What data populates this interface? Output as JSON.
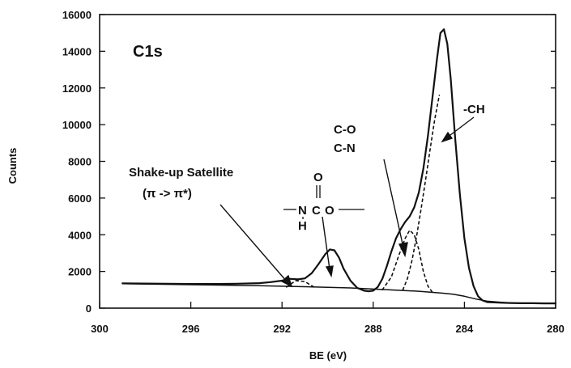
{
  "chart_data": {
    "type": "line",
    "xlabel": "BE (eV)",
    "ylabel": "Counts",
    "xlim": [
      300,
      280
    ],
    "ylim": [
      0,
      16000
    ],
    "x_ticks": [
      "300",
      "296",
      "292",
      "288",
      "284",
      "280"
    ],
    "x_tick_values": [
      300,
      296,
      292,
      288,
      284,
      280
    ],
    "y_ticks": [
      "0",
      "2000",
      "4000",
      "6000",
      "8000",
      "10000",
      "12000",
      "14000",
      "16000"
    ],
    "y_tick_values": [
      0,
      2000,
      4000,
      6000,
      8000,
      10000,
      12000,
      14000,
      16000
    ],
    "panel_label": "C1s",
    "series": [
      {
        "style": "solid",
        "x": [
          299.0,
          298.0,
          297.0,
          296.0,
          295.0,
          294.0,
          293.0,
          292.5,
          292.0,
          291.7,
          291.3,
          291.0,
          290.7,
          290.4,
          290.1,
          289.9,
          289.7,
          289.5,
          289.3,
          289.0,
          288.7,
          288.4,
          288.2,
          288.0,
          287.8,
          287.6,
          287.4,
          287.2,
          287.0,
          286.8,
          286.6,
          286.4,
          286.2,
          286.0,
          285.8,
          285.6,
          285.4,
          285.2,
          285.05,
          284.9,
          284.75,
          284.6,
          284.4,
          284.2,
          284.0,
          283.8,
          283.6,
          283.4,
          283.2,
          283.0,
          282.5,
          282.0,
          281.5,
          281.0,
          280.5,
          280.0
        ],
        "y": [
          1350,
          1340,
          1330,
          1320,
          1320,
          1330,
          1360,
          1420,
          1500,
          1600,
          1570,
          1620,
          1900,
          2400,
          2950,
          3200,
          3150,
          2750,
          2150,
          1500,
          1100,
          950,
          920,
          950,
          1150,
          1600,
          2300,
          3100,
          3800,
          4300,
          4700,
          5000,
          5500,
          6300,
          7600,
          9400,
          11500,
          13600,
          15000,
          15200,
          14400,
          12500,
          9200,
          6200,
          3800,
          2200,
          1200,
          650,
          420,
          330,
          300,
          280,
          270,
          270,
          260,
          260
        ]
      },
      {
        "style": "solid-baseline",
        "x": [
          299.0,
          296.0,
          293.0,
          291.0,
          289.0,
          288.0,
          287.0,
          286.0,
          285.0,
          284.5,
          284.0,
          283.5,
          283.0,
          282.0,
          281.0,
          280.0
        ],
        "y": [
          1330,
          1280,
          1220,
          1170,
          1100,
          1040,
          980,
          920,
          820,
          760,
          650,
          500,
          380,
          280,
          260,
          250
        ]
      },
      {
        "style": "dashed",
        "x": [
          291.8,
          291.4,
          291.0,
          290.6
        ],
        "y": [
          1150,
          1500,
          1450,
          1150
        ]
      },
      {
        "style": "dashed",
        "x": [
          287.6,
          287.2,
          286.9,
          286.6,
          286.4,
          286.2,
          286.0,
          285.8,
          285.6,
          285.4
        ],
        "y": [
          1000,
          1700,
          2800,
          3800,
          4250,
          4000,
          3200,
          2000,
          1200,
          860
        ]
      },
      {
        "style": "dashed",
        "x": [
          286.7,
          286.5,
          286.3,
          286.1,
          285.9,
          285.7,
          285.5,
          285.3,
          285.1
        ],
        "y": [
          1000,
          1600,
          2600,
          3900,
          5400,
          7000,
          8700,
          10300,
          11600
        ]
      }
    ],
    "annotations": [
      {
        "text": "-CH"
      },
      {
        "text": "C-O"
      },
      {
        "text": "C-N"
      },
      {
        "text": "Shake-up  Satellite"
      },
      {
        "text": "(π  ->  π*)"
      },
      {
        "text": "O"
      },
      {
        "text": "N"
      },
      {
        "text": "C"
      },
      {
        "text": "O"
      },
      {
        "text": "H"
      }
    ]
  }
}
